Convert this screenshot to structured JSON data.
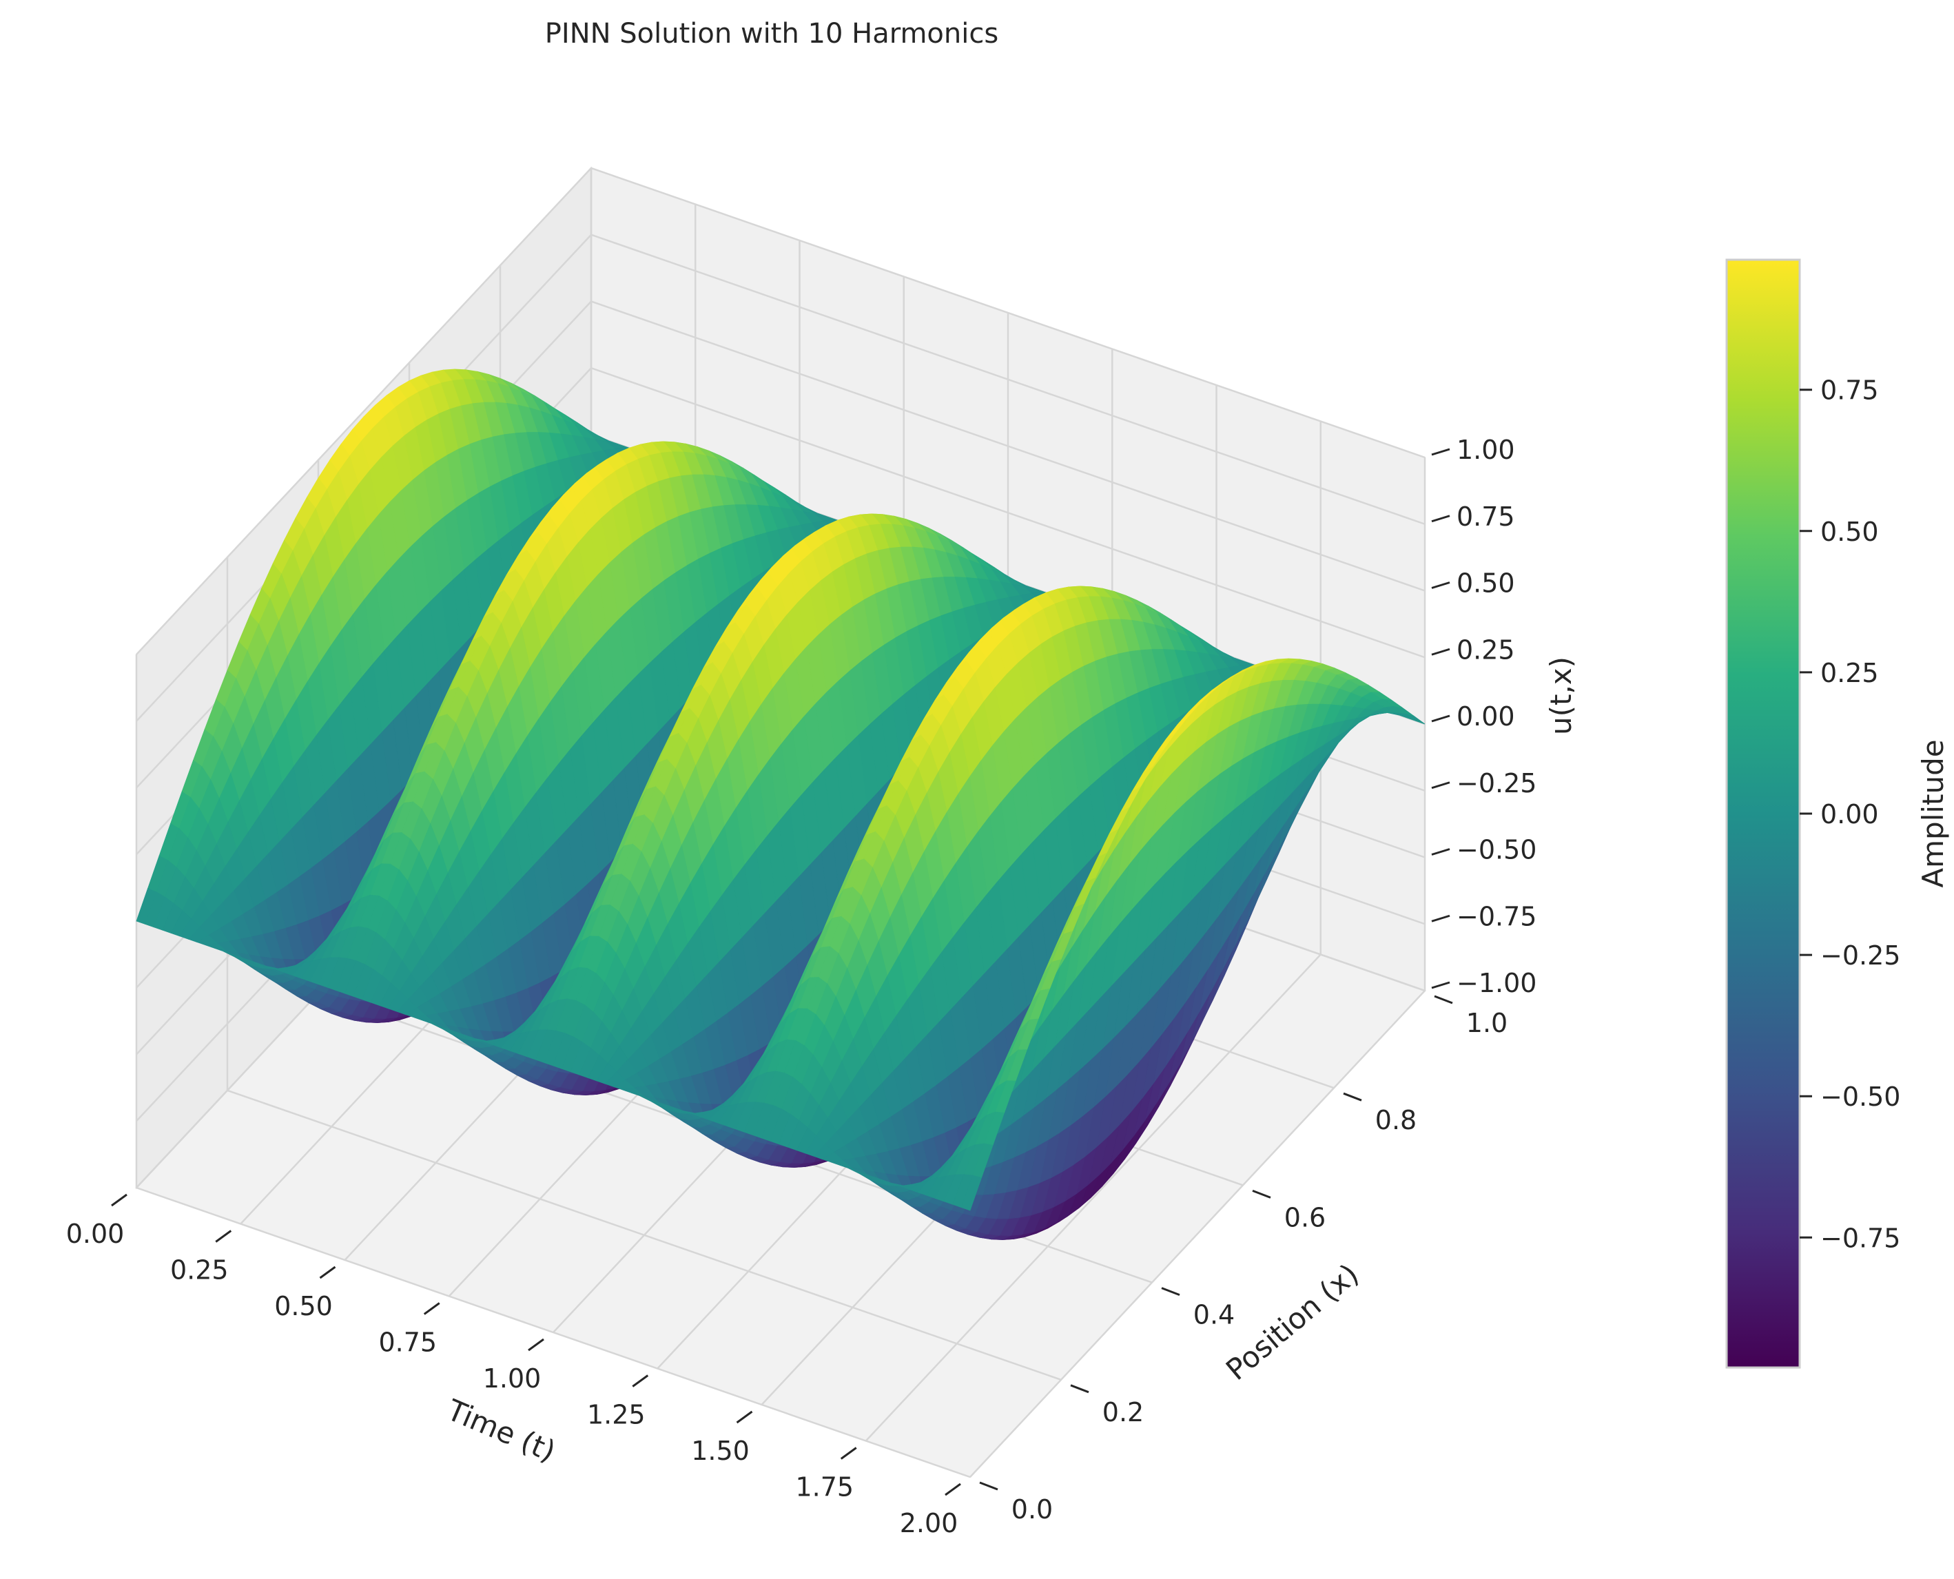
{
  "chart_data": {
    "type": "surface3d",
    "title": "PINN Solution with 10 Harmonics",
    "xlabel": "Time (t)",
    "ylabel": "Position (x)",
    "zlabel": "u(t,x)",
    "colorbar_label": "Amplitude",
    "colormap": "viridis",
    "xlim": [
      0,
      2
    ],
    "ylim": [
      0,
      1
    ],
    "zlim": [
      -1,
      1
    ],
    "x_ticks": [
      "0.00",
      "0.25",
      "0.50",
      "0.75",
      "1.00",
      "1.25",
      "1.50",
      "1.75",
      "2.00"
    ],
    "y_ticks": [
      "0.0",
      "0.2",
      "0.4",
      "0.6",
      "0.8",
      "1.0"
    ],
    "z_ticks": [
      "−1.00",
      "−0.75",
      "−0.50",
      "−0.25",
      "0.00",
      "0.25",
      "0.50",
      "0.75",
      "1.00"
    ],
    "colorbar_ticks": [
      "−0.75",
      "−0.50",
      "−0.25",
      "0.00",
      "0.25",
      "0.50",
      "0.75"
    ],
    "colorbar_range": [
      -0.98,
      0.98
    ],
    "surface": {
      "function": "u(t,x) = sin(pi*x) * cos(4*pi*t)",
      "t_peaks": [
        0.0,
        0.5,
        1.0,
        1.5
      ],
      "t_troughs": [
        0.25,
        0.75,
        1.25,
        1.75
      ],
      "max_amplitude": 0.98
    },
    "grid": true,
    "colorbar_position": "right"
  }
}
